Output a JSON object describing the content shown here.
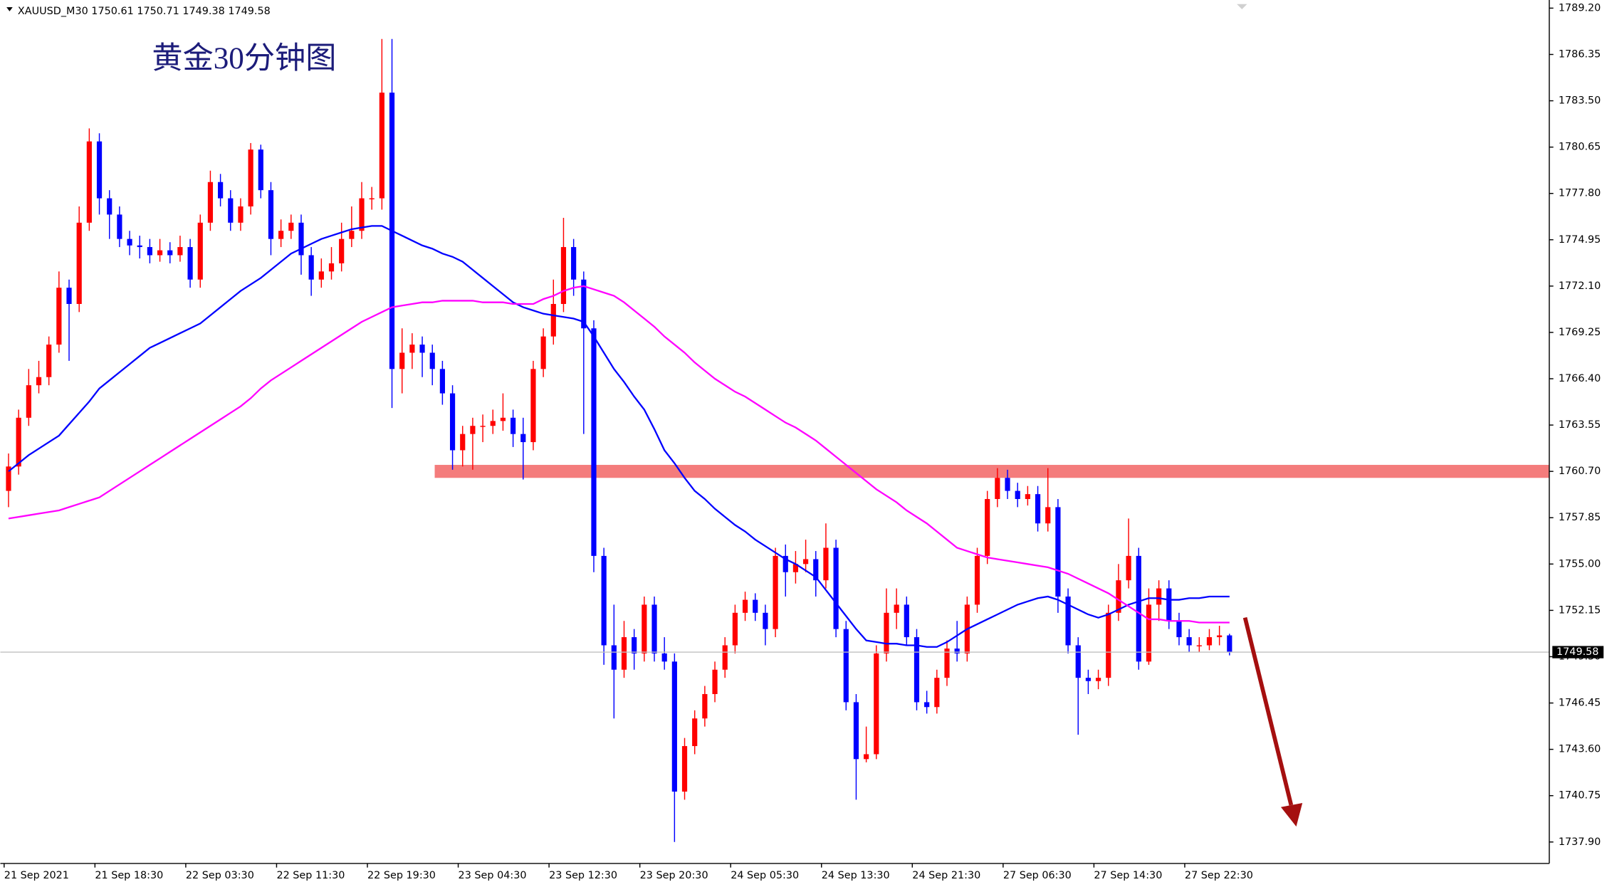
{
  "chart_data": {
    "type": "candlestick",
    "header": "XAUUSD_M30  1750.61 1750.71 1749.38 1749.58",
    "title": "黄金30分钟图",
    "up_color": "#ff0000",
    "down_color": "#0000ff",
    "categories": [
      null,
      null,
      "21 Sep 2021",
      null,
      null,
      null,
      null,
      null,
      null,
      null,
      null,
      "21 Sep 18:30",
      null,
      null,
      null,
      null,
      null,
      null,
      null,
      null,
      "22 Sep 03:30",
      null,
      null,
      null,
      null,
      null,
      null,
      null,
      null,
      "22 Sep 11:30",
      null,
      null,
      null,
      null,
      null,
      null,
      null,
      null,
      "22 Sep 19:30",
      null,
      null,
      null,
      null,
      null,
      null,
      null,
      null,
      "23 Sep 04:30",
      null,
      null,
      null,
      null,
      null,
      null,
      null,
      null,
      "23 Sep 12:30",
      null,
      null,
      null,
      null,
      null,
      null,
      null,
      null,
      "23 Sep 20:30",
      null,
      null,
      null,
      null,
      null,
      null,
      null,
      null,
      "24 Sep 05:30",
      null,
      null,
      null,
      null,
      null,
      null,
      null,
      null,
      "24 Sep 13:30",
      null,
      null,
      null,
      null,
      null,
      null,
      null,
      null,
      "24 Sep 21:30",
      null,
      null,
      null,
      null,
      null,
      null,
      null,
      null,
      "27 Sep 06:30",
      null,
      null,
      null,
      null,
      null,
      null,
      null,
      null,
      "27 Sep 14:30",
      null,
      null,
      null,
      null,
      null,
      null,
      null,
      null,
      "27 Sep 22:30",
      null,
      null
    ],
    "open": [
      1759.5,
      1761.0,
      1764.0,
      1766.0,
      1766.5,
      1768.5,
      1772.0,
      1771.0,
      1776.0,
      1781.0,
      1777.5,
      1776.5,
      1775.0,
      1774.6,
      1774.5,
      1774.0,
      1774.3,
      1774.0,
      1774.5,
      1772.5,
      1776.0,
      1778.5,
      1777.5,
      1776.0,
      1777.0,
      1780.5,
      1778.0,
      1775.0,
      1775.5,
      1776.0,
      1774.0,
      1772.5,
      1773.0,
      1773.5,
      1775.0,
      1775.5,
      1777.5,
      1777.5,
      1784.0,
      1767.0,
      1768.0,
      1768.5,
      1768.0,
      1767.0,
      1765.5,
      1762.0,
      1763.0,
      1763.5,
      1763.5,
      1763.8,
      1764.0,
      1763.0,
      1762.5,
      1767.0,
      1769.0,
      1771.0,
      1774.5,
      1772.5,
      1769.5,
      1755.5,
      1750.0,
      1748.5,
      1750.5,
      1749.5,
      1752.5,
      1749.5,
      1749.0,
      1741.0,
      1743.8,
      1745.5,
      1747.0,
      1748.5,
      1750.0,
      1752.0,
      1752.8,
      1752.0,
      1751.0,
      1755.5,
      1754.5,
      1755.0,
      1755.3,
      1754.0,
      1756.0,
      1751.0,
      1746.5,
      1743.0,
      1743.3,
      1749.5,
      1752.0,
      1752.5,
      1750.5,
      1746.5,
      1746.2,
      1748.0,
      1749.8,
      1749.5,
      1752.5,
      1755.5,
      1759.0,
      1760.3,
      1759.5,
      1759.0,
      1759.3,
      1757.5,
      1758.5,
      1753.0,
      1750.0,
      1748.0,
      1747.8,
      1748.0,
      1752.0,
      1754.0,
      1755.5,
      1749.0,
      1752.5,
      1753.5,
      1751.5,
      1750.5,
      1750.0,
      1750.0,
      1750.5,
      1750.61
    ],
    "high": [
      1761.8,
      1764.5,
      1767.0,
      1767.5,
      1769.0,
      1773.0,
      1772.5,
      1777.0,
      1781.8,
      1781.5,
      1778.0,
      1777.0,
      1775.5,
      1775.2,
      1775.0,
      1775.0,
      1774.8,
      1775.2,
      1775.0,
      1776.5,
      1779.2,
      1779.0,
      1778.0,
      1777.5,
      1780.9,
      1780.8,
      1778.5,
      1776.2,
      1776.5,
      1776.5,
      1774.5,
      1773.8,
      1774.5,
      1776.0,
      1777.0,
      1778.5,
      1778.2,
      1787.3,
      1787.3,
      1769.5,
      1769.2,
      1769.0,
      1768.5,
      1767.5,
      1766.0,
      1763.5,
      1764.0,
      1764.2,
      1764.5,
      1765.5,
      1764.5,
      1764.0,
      1767.5,
      1769.5,
      1772.5,
      1776.3,
      1775.0,
      1773.0,
      1770.0,
      1756.0,
      1752.5,
      1751.5,
      1751.0,
      1753.0,
      1753.0,
      1750.5,
      1749.5,
      1744.3,
      1746.0,
      1747.5,
      1749.0,
      1750.5,
      1752.5,
      1753.3,
      1753.2,
      1752.5,
      1756.0,
      1756.2,
      1755.8,
      1756.5,
      1755.8,
      1757.5,
      1756.5,
      1751.5,
      1747.0,
      1745.0,
      1750.0,
      1753.5,
      1753.5,
      1753.0,
      1751.0,
      1747.2,
      1748.5,
      1750.3,
      1751.5,
      1753.0,
      1756.0,
      1759.5,
      1760.9,
      1760.8,
      1760.0,
      1759.8,
      1759.8,
      1760.9,
      1759.0,
      1753.5,
      1750.5,
      1748.5,
      1748.5,
      1752.5,
      1755.0,
      1757.8,
      1756.0,
      1753.5,
      1754.0,
      1754.0,
      1752.0,
      1751.0,
      1750.5,
      1751.0,
      1751.2,
      1750.71
    ],
    "low": [
      1758.5,
      1760.5,
      1763.5,
      1765.5,
      1766.0,
      1768.0,
      1767.5,
      1770.5,
      1775.5,
      1776.5,
      1775.0,
      1774.5,
      1774.0,
      1773.8,
      1773.5,
      1773.6,
      1773.5,
      1773.6,
      1772.0,
      1772.0,
      1775.5,
      1777.0,
      1775.5,
      1775.5,
      1776.5,
      1777.5,
      1774.0,
      1774.5,
      1775.0,
      1772.8,
      1771.5,
      1772.0,
      1772.5,
      1773.0,
      1774.5,
      1775.0,
      1776.8,
      1776.8,
      1764.6,
      1765.5,
      1767.0,
      1766.5,
      1766.0,
      1764.8,
      1760.8,
      1761.0,
      1760.8,
      1762.5,
      1763.0,
      1763.2,
      1762.2,
      1760.2,
      1762.0,
      1766.5,
      1768.5,
      1770.5,
      1771.5,
      1763.0,
      1754.5,
      1748.8,
      1745.5,
      1748.0,
      1748.5,
      1749.0,
      1749.0,
      1748.5,
      1737.9,
      1740.5,
      1743.3,
      1745.0,
      1746.5,
      1748.0,
      1749.5,
      1751.5,
      1751.5,
      1750.0,
      1750.5,
      1753.0,
      1753.8,
      1754.5,
      1753.0,
      1753.5,
      1750.5,
      1746.0,
      1740.5,
      1742.8,
      1743.0,
      1749.0,
      1751.0,
      1750.0,
      1746.0,
      1745.8,
      1745.8,
      1747.5,
      1749.0,
      1749.0,
      1752.0,
      1755.0,
      1758.5,
      1759.0,
      1758.5,
      1758.6,
      1757.0,
      1757.0,
      1752.0,
      1749.5,
      1744.5,
      1747.0,
      1747.3,
      1747.5,
      1751.5,
      1753.5,
      1748.5,
      1748.8,
      1751.5,
      1751.0,
      1750.0,
      1749.6,
      1749.6,
      1749.7,
      1750.0,
      1749.38
    ],
    "close": [
      1761.0,
      1764.0,
      1766.0,
      1766.5,
      1768.5,
      1772.0,
      1771.0,
      1776.0,
      1781.0,
      1777.5,
      1776.5,
      1775.0,
      1774.6,
      1774.5,
      1774.0,
      1774.3,
      1774.0,
      1774.5,
      1772.5,
      1776.0,
      1778.5,
      1777.5,
      1776.0,
      1777.0,
      1780.5,
      1778.0,
      1775.0,
      1775.5,
      1776.0,
      1774.0,
      1772.5,
      1773.0,
      1773.5,
      1775.0,
      1775.5,
      1777.5,
      1777.5,
      1784.0,
      1767.0,
      1768.0,
      1768.5,
      1768.0,
      1767.0,
      1765.5,
      1762.0,
      1763.0,
      1763.5,
      1763.5,
      1763.8,
      1764.0,
      1763.0,
      1762.5,
      1767.0,
      1769.0,
      1771.0,
      1774.5,
      1772.5,
      1769.5,
      1755.5,
      1750.0,
      1748.5,
      1750.5,
      1749.5,
      1752.5,
      1749.5,
      1749.0,
      1741.0,
      1743.8,
      1745.5,
      1747.0,
      1748.5,
      1750.0,
      1752.0,
      1752.8,
      1752.0,
      1751.0,
      1755.5,
      1754.5,
      1755.0,
      1755.3,
      1754.0,
      1756.0,
      1751.0,
      1746.5,
      1743.0,
      1743.3,
      1749.5,
      1752.0,
      1752.5,
      1750.5,
      1746.5,
      1746.2,
      1748.0,
      1749.8,
      1749.5,
      1752.5,
      1755.5,
      1759.0,
      1760.3,
      1759.5,
      1759.0,
      1759.3,
      1757.5,
      1758.5,
      1753.0,
      1750.0,
      1748.0,
      1747.8,
      1748.0,
      1752.0,
      1754.0,
      1755.5,
      1749.0,
      1752.5,
      1753.5,
      1751.5,
      1750.5,
      1750.0,
      1750.0,
      1750.5,
      1750.61,
      1749.58
    ],
    "series": [
      {
        "color": "#0000ff",
        "values": [
          1760.7,
          1761.2,
          1761.7,
          1762.1,
          1762.5,
          1762.9,
          1763.6,
          1764.3,
          1765.0,
          1765.8,
          1766.3,
          1766.8,
          1767.3,
          1767.8,
          1768.3,
          1768.6,
          1768.9,
          1769.2,
          1769.5,
          1769.8,
          1770.3,
          1770.8,
          1771.3,
          1771.8,
          1772.2,
          1772.6,
          1773.1,
          1773.6,
          1774.1,
          1774.4,
          1774.7,
          1775.0,
          1775.2,
          1775.4,
          1775.6,
          1775.7,
          1775.8,
          1775.8,
          1775.5,
          1775.2,
          1774.9,
          1774.6,
          1774.4,
          1774.1,
          1773.9,
          1773.6,
          1773.1,
          1772.6,
          1772.1,
          1771.6,
          1771.1,
          1770.8,
          1770.6,
          1770.4,
          1770.3,
          1770.2,
          1770.1,
          1769.9,
          1769.0,
          1768.0,
          1767.0,
          1766.2,
          1765.3,
          1764.5,
          1763.3,
          1762.0,
          1761.2,
          1760.3,
          1759.5,
          1759.0,
          1758.4,
          1757.9,
          1757.4,
          1757.0,
          1756.5,
          1756.1,
          1755.7,
          1755.3,
          1755.0,
          1754.6,
          1754.2,
          1753.4,
          1752.6,
          1751.8,
          1751.0,
          1750.3,
          1750.2,
          1750.1,
          1750.1,
          1750.0,
          1750.0,
          1749.9,
          1749.9,
          1750.2,
          1750.6,
          1751.0,
          1751.3,
          1751.6,
          1751.9,
          1752.2,
          1752.5,
          1752.7,
          1752.9,
          1753.0,
          1752.8,
          1752.5,
          1752.2,
          1751.9,
          1751.7,
          1751.9,
          1752.2,
          1752.5,
          1752.7,
          1752.9,
          1752.9,
          1752.8,
          1752.8,
          1752.9,
          1752.9,
          1753.0,
          1753.0,
          1753.0
        ]
      },
      {
        "color": "#ff00ff",
        "values": [
          1757.8,
          1757.9,
          1758.0,
          1758.1,
          1758.2,
          1758.3,
          1758.5,
          1758.7,
          1758.9,
          1759.1,
          1759.5,
          1759.9,
          1760.3,
          1760.7,
          1761.1,
          1761.5,
          1761.9,
          1762.3,
          1762.7,
          1763.1,
          1763.5,
          1763.9,
          1764.3,
          1764.7,
          1765.2,
          1765.8,
          1766.3,
          1766.7,
          1767.1,
          1767.5,
          1767.9,
          1768.3,
          1768.7,
          1769.1,
          1769.5,
          1769.9,
          1770.2,
          1770.5,
          1770.8,
          1770.9,
          1771.0,
          1771.1,
          1771.1,
          1771.2,
          1771.2,
          1771.2,
          1771.2,
          1771.1,
          1771.1,
          1771.1,
          1771.0,
          1771.0,
          1771.0,
          1771.3,
          1771.5,
          1771.8,
          1772.0,
          1772.1,
          1771.9,
          1771.7,
          1771.5,
          1771.1,
          1770.6,
          1770.1,
          1769.6,
          1769.0,
          1768.5,
          1768.0,
          1767.4,
          1766.9,
          1766.4,
          1766.0,
          1765.6,
          1765.3,
          1764.9,
          1764.5,
          1764.1,
          1763.7,
          1763.4,
          1763.0,
          1762.6,
          1762.1,
          1761.6,
          1761.1,
          1760.6,
          1760.1,
          1759.6,
          1759.2,
          1758.8,
          1758.3,
          1757.9,
          1757.5,
          1757.0,
          1756.5,
          1756.0,
          1755.8,
          1755.6,
          1755.4,
          1755.3,
          1755.2,
          1755.1,
          1755.0,
          1754.9,
          1754.8,
          1754.6,
          1754.4,
          1754.1,
          1753.8,
          1753.5,
          1753.2,
          1752.8,
          1752.4,
          1752.0,
          1751.6,
          1751.6,
          1751.5,
          1751.5,
          1751.5,
          1751.4,
          1751.4,
          1751.4,
          1751.4
        ]
      }
    ],
    "zone": {
      "range": [
        1760.3,
        1761.1
      ],
      "color": "#f47c7c"
    },
    "last_price_color": "#c0c0c0",
    "ylim": [
      1736.58,
      1789.7
    ],
    "yticks": [
      {
        "value": 1789.2,
        "label": "1789.20"
      },
      1786.35,
      {
        "value": 1783.5,
        "label": "1783.50"
      },
      1780.65,
      {
        "value": 1777.8,
        "label": "1777.80"
      },
      1774.95,
      {
        "value": 1772.1,
        "label": "1772.10"
      },
      1769.25,
      {
        "value": 1766.4,
        "label": "1766.40"
      },
      1763.55,
      {
        "value": 1760.7,
        "label": "1760.70"
      },
      1757.85,
      {
        "value": 1755,
        "label": "1755.00"
      },
      1752.15,
      {
        "value": 1749.3,
        "label": "1749.30"
      },
      1746.45,
      {
        "value": 1743.6,
        "label": "1743.60"
      },
      1740.75,
      {
        "value": 1737.9,
        "label": "1737.90"
      }
    ]
  }
}
